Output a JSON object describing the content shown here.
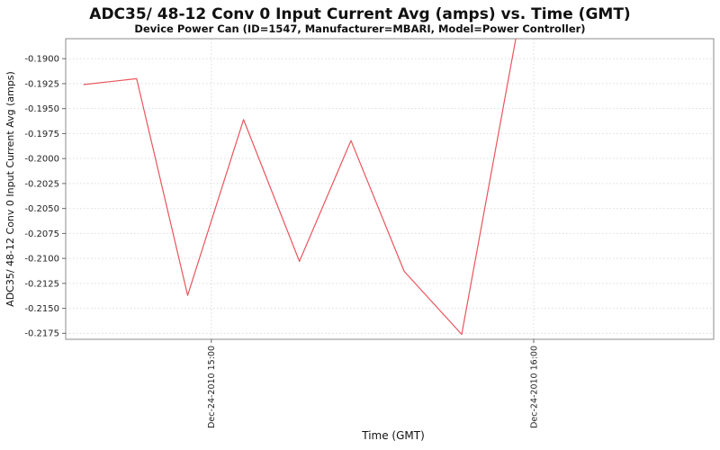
{
  "chart": {
    "title": "ADC35/ 48-12 Conv 0 Input Current Avg (amps) vs. Time (GMT)",
    "subtitle": "Device Power Can (ID=1547, Manufacturer=MBARI, Model=Power Controller)",
    "x_axis_label": "Time (GMT)",
    "y_axis_label": "ADC35/ 48-12 Conv 0 Input Current Avg (amps)"
  },
  "chart_data": {
    "type": "line",
    "title": "ADC35/ 48-12 Conv 0 Input Current Avg (amps) vs. Time (GMT)",
    "subtitle": "Device Power Can (ID=1547, Manufacturer=MBARI, Model=Power Controller)",
    "xlabel": "Time (GMT)",
    "ylabel": "ADC35/ 48-12 Conv 0 Input Current Avg (amps)",
    "date": "Dec-24-2010",
    "legend": "none",
    "grid": "dotted",
    "x_ticks": [
      {
        "label": "Dec-24-2010 15:00",
        "minutes": 900
      },
      {
        "label": "Dec-24-2010 16:00",
        "minutes": 960
      }
    ],
    "y_ticks": [
      "-0.1900",
      "-0.1925",
      "-0.1950",
      "-0.1975",
      "-0.2000",
      "-0.2025",
      "-0.2050",
      "-0.2075",
      "-0.2100",
      "-0.2125",
      "-0.2150",
      "-0.2175"
    ],
    "x_range_minutes": [
      872.9,
      993.5
    ],
    "y_range": [
      -0.2181,
      -0.188
    ],
    "series": [
      {
        "name": "ADC35/ 48-12 Conv 0 Input Current Avg",
        "points": [
          {
            "time": "14:36",
            "minutes": 876.2,
            "value": -0.1926
          },
          {
            "time": "14:46",
            "minutes": 886.1,
            "value": -0.192
          },
          {
            "time": "14:56",
            "minutes": 895.6,
            "value": -0.2137
          },
          {
            "time": "15:06",
            "minutes": 906.0,
            "value": -0.1961
          },
          {
            "time": "15:16",
            "minutes": 916.4,
            "value": -0.2103
          },
          {
            "time": "15:26",
            "minutes": 926.0,
            "value": -0.1982
          },
          {
            "time": "15:36",
            "minutes": 935.9,
            "value": -0.2113
          },
          {
            "time": "15:47",
            "minutes": 946.6,
            "value": -0.2176
          },
          {
            "time": "15:57",
            "minutes": 956.8,
            "value": -0.1876
          }
        ]
      }
    ]
  },
  "colors": {
    "series_line": "#e9555c",
    "gridline": "#dcdcdc",
    "plot_border": "#8c8c8c",
    "tick_mark": "#666666",
    "background": "#ffffff"
  }
}
